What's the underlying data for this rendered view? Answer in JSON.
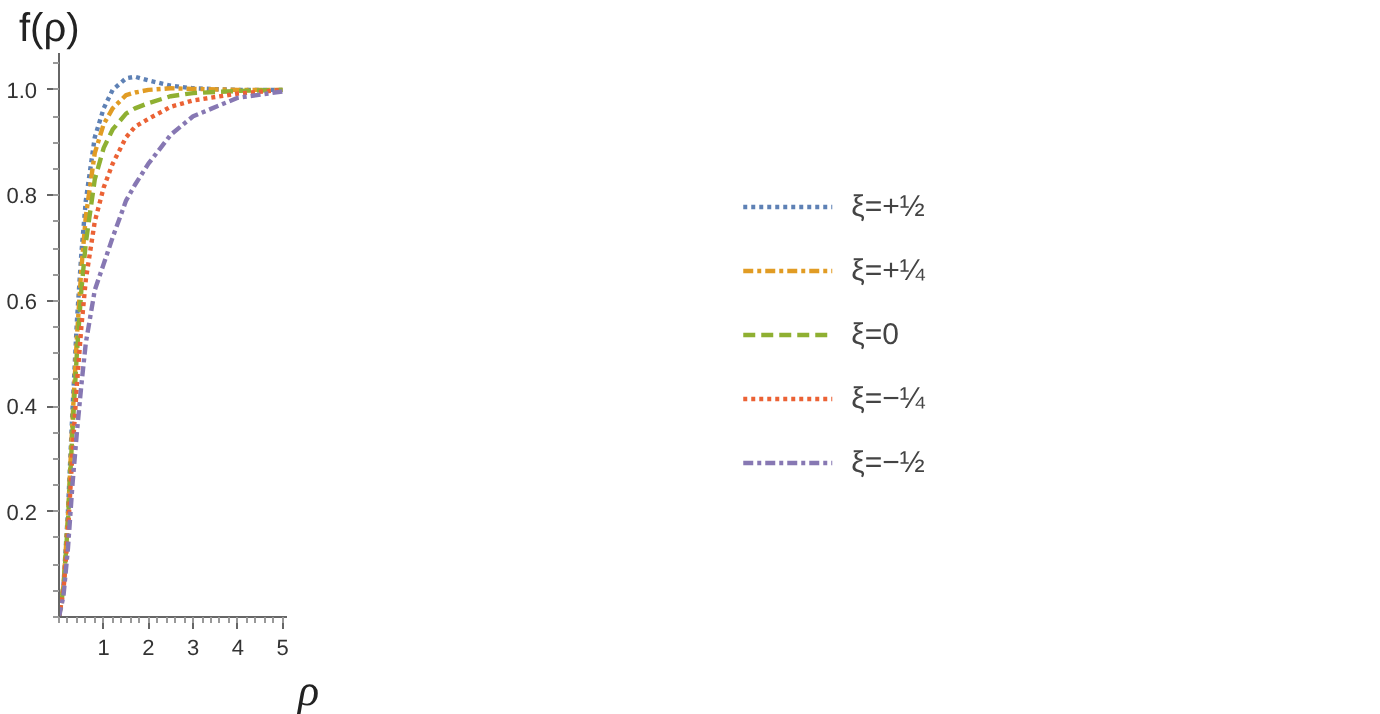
{
  "chart_data": {
    "type": "line",
    "xlabel": "ρ",
    "ylabel": "f(ρ)",
    "x": [
      0,
      0.1,
      0.2,
      0.3,
      0.4,
      0.5,
      0.6,
      0.8,
      1,
      1.2,
      1.5,
      1.7,
      2,
      2.5,
      3,
      4,
      5
    ],
    "series": [
      {
        "name": "ξ=+½",
        "color": "#5e81b5",
        "line_style": "dotted",
        "values": [
          0,
          0.06,
          0.2,
          0.39,
          0.56,
          0.69,
          0.79,
          0.91,
          0.965,
          1.0,
          1.022,
          1.025,
          1.018,
          1.008,
          1.003,
          1.0,
          1.0
        ]
      },
      {
        "name": "ξ=+¼",
        "color": "#e19c24",
        "line_style": "dashdot",
        "values": [
          0,
          0.06,
          0.19,
          0.37,
          0.53,
          0.66,
          0.76,
          0.88,
          0.935,
          0.965,
          0.99,
          0.995,
          1.0,
          1.003,
          1.002,
          1.0,
          1.0
        ]
      },
      {
        "name": "ξ=0",
        "color": "#8fb032",
        "line_style": "dashed",
        "values": [
          0,
          0.055,
          0.18,
          0.35,
          0.5,
          0.62,
          0.71,
          0.83,
          0.89,
          0.925,
          0.955,
          0.965,
          0.975,
          0.988,
          0.994,
          0.998,
          1.0
        ]
      },
      {
        "name": "ξ=−¼",
        "color": "#eb6235",
        "line_style": "dotted",
        "values": [
          0,
          0.05,
          0.16,
          0.31,
          0.44,
          0.55,
          0.64,
          0.75,
          0.815,
          0.86,
          0.91,
          0.93,
          0.945,
          0.968,
          0.98,
          0.993,
          1.0
        ]
      },
      {
        "name": "ξ=−½",
        "color": "#8778b3",
        "line_style": "dashdot",
        "values": [
          0,
          0.04,
          0.13,
          0.25,
          0.35,
          0.44,
          0.52,
          0.62,
          0.67,
          0.72,
          0.79,
          0.82,
          0.86,
          0.915,
          0.95,
          0.985,
          0.997
        ]
      }
    ],
    "xlim": [
      0,
      5.1
    ],
    "ylim": [
      0,
      1.07
    ],
    "xticks": [
      1,
      2,
      3,
      4,
      5
    ],
    "yticks": [
      0.2,
      0.4,
      0.6,
      0.8,
      {
        "value": 1.0,
        "label": "1.0"
      }
    ],
    "legend": "right",
    "grid": false
  }
}
